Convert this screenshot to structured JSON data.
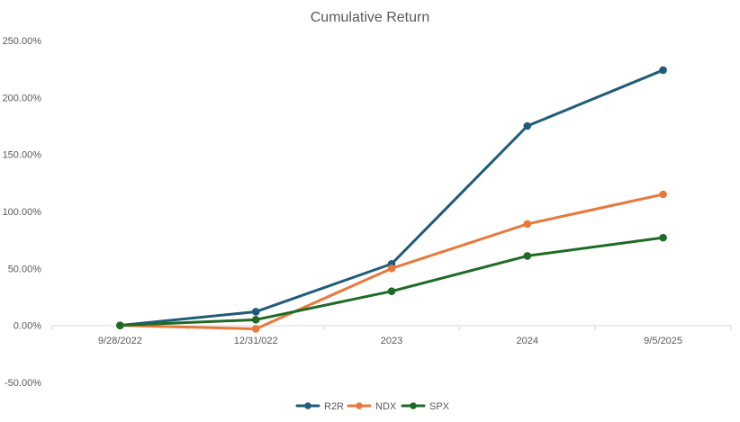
{
  "chart_data": {
    "type": "line",
    "title": "Cumulative Return",
    "xlabel": "",
    "ylabel": "",
    "categories": [
      "9/28/2022",
      "12/31/022",
      "2023",
      "2024",
      "9/5/2025"
    ],
    "y_ticks": [
      "-50.00%",
      "0.00%",
      "50.00%",
      "100.00%",
      "150.00%",
      "200.00%",
      "250.00%"
    ],
    "ylim": [
      -50,
      250
    ],
    "grid": false,
    "legend_position": "bottom",
    "series": [
      {
        "name": "R2R",
        "color": "#1F5C7A",
        "values": [
          0,
          12,
          54,
          175,
          224
        ]
      },
      {
        "name": "NDX",
        "color": "#E8793A",
        "values": [
          0,
          -3,
          50,
          89,
          115
        ]
      },
      {
        "name": "SPX",
        "color": "#1E6B26",
        "values": [
          0,
          5,
          30,
          61,
          77
        ]
      }
    ]
  }
}
